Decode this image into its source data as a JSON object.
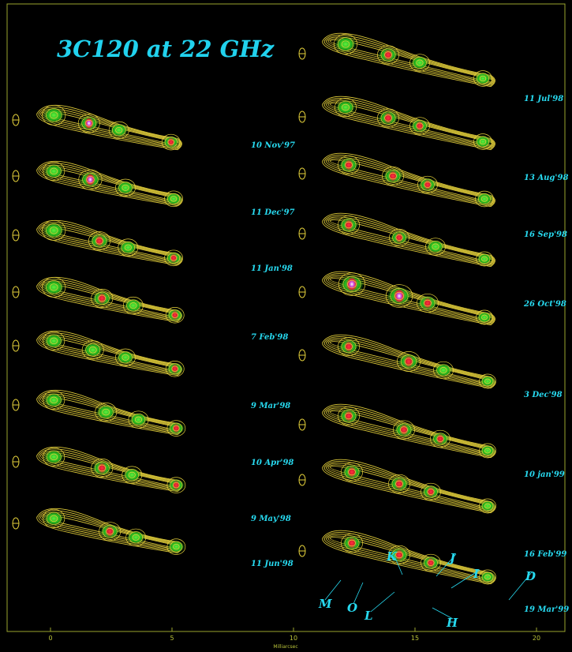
{
  "title": "3C120 at 22 GHz",
  "axis": {
    "label": "Milliarcsec",
    "ticks": [
      "0",
      "5",
      "10",
      "15",
      "20"
    ]
  },
  "left_epochs": [
    "10 Nov'97",
    "11 Dec'97",
    "11 Jan'98",
    "7 Feb'98",
    "9 Mar'98",
    "10 Apr'98",
    "9 May'98",
    "11 Jun'98"
  ],
  "right_epochs": [
    "11 Jul'98",
    "13 Aug'98",
    "16 Sep'98",
    "26 Oct'98",
    "3 Dec'98",
    "10 jan'99",
    "16 Feb'99",
    "19 Mar'99"
  ],
  "components": [
    "M",
    "O",
    "L",
    "K",
    "J",
    "I",
    "H",
    "D"
  ],
  "colors": {
    "background": "#000000",
    "contour": "#e8d43c",
    "emission": "#2fd22a",
    "peak": "#e0203a",
    "core": "#c040d0",
    "label": "#27d9ef",
    "frame": "#9aa52e"
  }
}
